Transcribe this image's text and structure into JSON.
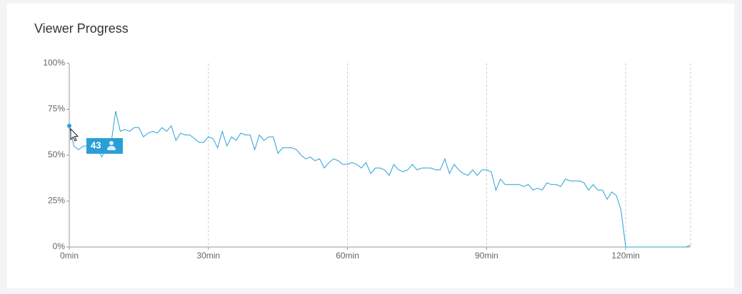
{
  "chart_data": {
    "type": "line",
    "title": "Viewer Progress",
    "color": "#2a9fd6",
    "xlim": [
      0,
      134
    ],
    "ylim": [
      0,
      100
    ],
    "xticks": [
      {
        "value": 0,
        "label": "0min"
      },
      {
        "value": 30,
        "label": "30min"
      },
      {
        "value": 60,
        "label": "60min"
      },
      {
        "value": 90,
        "label": "90min"
      },
      {
        "value": 120,
        "label": "120min"
      }
    ],
    "yticks": [
      {
        "value": 0,
        "label": "0%"
      },
      {
        "value": 25,
        "label": "25%"
      },
      {
        "value": 50,
        "label": "50%"
      },
      {
        "value": 75,
        "label": "75%"
      },
      {
        "value": 100,
        "label": "100%"
      }
    ],
    "grid": true,
    "tooltip": 43,
    "x": [
      0,
      1,
      2,
      3,
      4,
      5,
      6,
      7,
      8,
      9,
      10,
      11,
      12,
      13,
      14,
      15,
      16,
      17,
      18,
      19,
      20,
      21,
      22,
      23,
      24,
      25,
      26,
      27,
      28,
      29,
      30,
      31,
      32,
      33,
      34,
      35,
      36,
      37,
      38,
      39,
      40,
      41,
      42,
      43,
      44,
      45,
      46,
      47,
      48,
      49,
      50,
      51,
      52,
      53,
      54,
      55,
      56,
      57,
      58,
      59,
      60,
      61,
      62,
      63,
      64,
      65,
      66,
      67,
      68,
      69,
      70,
      71,
      72,
      73,
      74,
      75,
      76,
      77,
      78,
      79,
      80,
      81,
      82,
      83,
      84,
      85,
      86,
      87,
      88,
      89,
      90,
      91,
      92,
      93,
      94,
      95,
      96,
      97,
      98,
      99,
      100,
      101,
      102,
      103,
      104,
      105,
      106,
      107,
      108,
      109,
      110,
      111,
      112,
      113,
      114,
      115,
      116,
      117,
      118,
      119,
      120,
      121,
      122,
      123,
      124,
      125,
      126,
      127,
      128,
      129,
      130,
      131,
      132,
      133,
      134
    ],
    "values": [
      66,
      55,
      53,
      55,
      55,
      57,
      55,
      49,
      54,
      56,
      74,
      63,
      64,
      63,
      65,
      65,
      60,
      62,
      63,
      62,
      65,
      63,
      66,
      58,
      62,
      61,
      61,
      59,
      57,
      57,
      60,
      59,
      54,
      63,
      55,
      60,
      58,
      62,
      61,
      61,
      53,
      61,
      58,
      60,
      60,
      51,
      54,
      54,
      54,
      53,
      50,
      48,
      49,
      47,
      48,
      43,
      46,
      48,
      47,
      45,
      45,
      46,
      45,
      43,
      46,
      40,
      43,
      43,
      42,
      39,
      45,
      42,
      41,
      42,
      45,
      42,
      43,
      43,
      43,
      42,
      42,
      48,
      40,
      45,
      42,
      40,
      39,
      42,
      39,
      42,
      42,
      41,
      31,
      37,
      34,
      34,
      34,
      34,
      33,
      34,
      31,
      32,
      31,
      35,
      34,
      34,
      33,
      37,
      36,
      36,
      36,
      35,
      31,
      34,
      31,
      31,
      26,
      30,
      28,
      20,
      0,
      0,
      0,
      0,
      0,
      0,
      0,
      0,
      0,
      0,
      0,
      0,
      0,
      0,
      1
    ]
  }
}
